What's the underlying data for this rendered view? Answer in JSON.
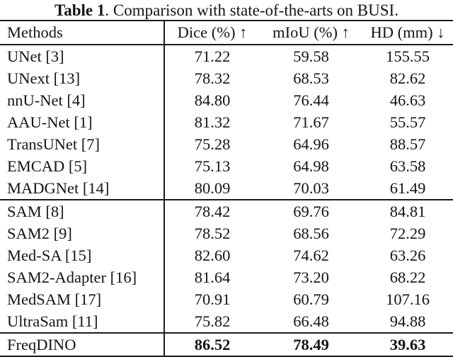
{
  "caption": {
    "label": "Table 1",
    "text": ". Comparison with state-of-the-arts on BUSI."
  },
  "table": {
    "columns": [
      "Methods",
      "Dice (%) ↑",
      "mIoU (%) ↑",
      "HD (mm) ↓"
    ],
    "rows": [
      {
        "method": "UNet [3]",
        "dice": "71.22",
        "miou": "59.58",
        "hd": "155.55"
      },
      {
        "method": "UNext [13]",
        "dice": "78.32",
        "miou": "68.53",
        "hd": "82.62"
      },
      {
        "method": "nnU-Net [4]",
        "dice": "84.80",
        "miou": "76.44",
        "hd": "46.63"
      },
      {
        "method": "AAU-Net [1]",
        "dice": "81.32",
        "miou": "71.67",
        "hd": "55.57"
      },
      {
        "method": "TransUNet [7]",
        "dice": "75.28",
        "miou": "64.96",
        "hd": "88.57"
      },
      {
        "method": "EMCAD [5]",
        "dice": "75.13",
        "miou": "64.98",
        "hd": "63.58"
      },
      {
        "method": "MADGNet [14]",
        "dice": "80.09",
        "miou": "70.03",
        "hd": "61.49"
      },
      {
        "method": "SAM [8]",
        "dice": "78.42",
        "miou": "69.76",
        "hd": "84.81"
      },
      {
        "method": "SAM2 [9]",
        "dice": "78.52",
        "miou": "68.56",
        "hd": "72.29"
      },
      {
        "method": "Med-SA [15]",
        "dice": "82.60",
        "miou": "74.62",
        "hd": "63.26"
      },
      {
        "method": "SAM2-Adapter [16]",
        "dice": "81.64",
        "miou": "73.20",
        "hd": "68.22"
      },
      {
        "method": "MedSAM [17]",
        "dice": "70.91",
        "miou": "60.79",
        "hd": "107.16"
      },
      {
        "method": "UltraSam [11]",
        "dice": "75.82",
        "miou": "66.48",
        "hd": "94.88"
      },
      {
        "method": "FreqDINO",
        "dice": "86.52",
        "miou": "78.49",
        "hd": "39.63"
      }
    ]
  },
  "chart_data": {
    "type": "table",
    "title": "Table 1. Comparison with state-of-the-arts on BUSI.",
    "columns": [
      "Methods",
      "Dice (%) ↑",
      "mIoU (%) ↑",
      "HD (mm) ↓"
    ],
    "groups": [
      {
        "name": "specialist-models",
        "row_indices": [
          0,
          1,
          2,
          3,
          4,
          5,
          6
        ]
      },
      {
        "name": "sam-based-models",
        "row_indices": [
          7,
          8,
          9,
          10,
          11,
          12
        ]
      },
      {
        "name": "proposed-method",
        "row_indices": [
          13
        ],
        "bold_values": true
      }
    ]
  },
  "colors": {
    "background": "#ffffff",
    "text": "#141414",
    "rule": "#1b1b1b"
  }
}
